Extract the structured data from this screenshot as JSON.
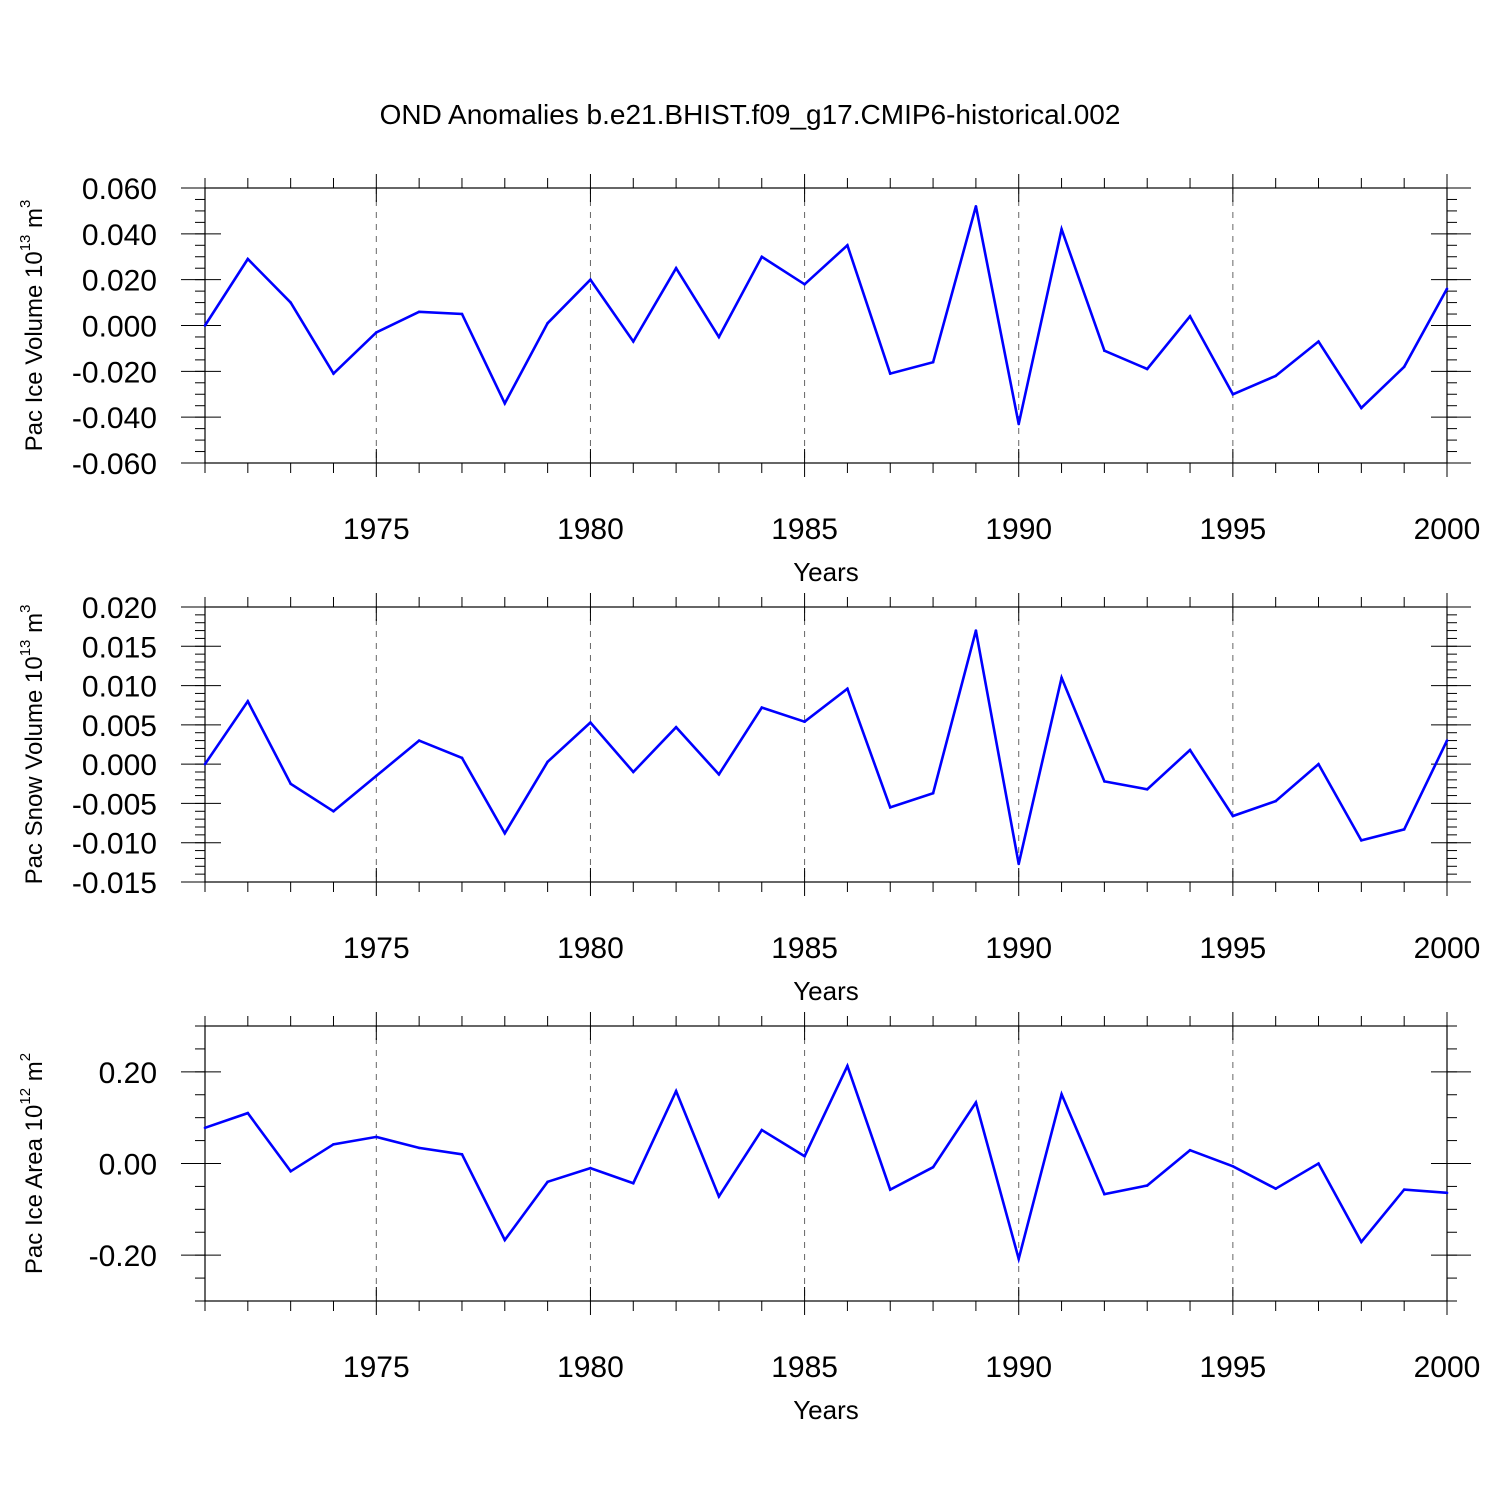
{
  "title": "OND Anomalies b.e21.BHIST.f09_g17.CMIP6-historical.002",
  "line_color": "#0000ff",
  "chart_data": [
    {
      "type": "line",
      "ylabel": {
        "text": "Pac Ice Volume 10",
        "exp1": "13",
        "unit": " m",
        "exp2": "3"
      },
      "xlabel": "Years",
      "xlim": [
        1971,
        2000
      ],
      "ylim": [
        -0.06,
        0.06
      ],
      "yticks": [
        -0.06,
        -0.04,
        -0.02,
        0.0,
        0.02,
        0.04,
        0.06
      ],
      "ytick_labels": [
        "-0.060",
        "-0.040",
        "-0.020",
        "0.000",
        "0.020",
        "0.040",
        "0.060"
      ],
      "yminor_step": 0.005,
      "xticks": [
        1975,
        1980,
        1985,
        1990,
        1995,
        2000
      ],
      "xtick_labels": [
        "1975",
        "1980",
        "1985",
        "1990",
        "1995",
        "2000"
      ],
      "grid": "vertical dashed",
      "x": [
        1971,
        1972,
        1973,
        1974,
        1975,
        1976,
        1977,
        1978,
        1979,
        1980,
        1981,
        1982,
        1983,
        1984,
        1985,
        1986,
        1987,
        1988,
        1989,
        1990,
        1991,
        1992,
        1993,
        1994,
        1995,
        1996,
        1997,
        1998,
        1999,
        2000
      ],
      "y": [
        0.0,
        0.029,
        0.01,
        -0.021,
        -0.003,
        0.006,
        0.005,
        -0.034,
        0.001,
        0.02,
        -0.007,
        0.025,
        -0.005,
        0.03,
        0.018,
        0.035,
        -0.021,
        -0.016,
        0.052,
        -0.043,
        0.042,
        -0.011,
        -0.019,
        0.004,
        -0.03,
        -0.022,
        -0.007,
        -0.036,
        -0.018,
        0.016
      ]
    },
    {
      "type": "line",
      "ylabel": {
        "text": "Pac Snow Volume 10",
        "exp1": "13",
        "unit": " m",
        "exp2": "3"
      },
      "xlabel": "Years",
      "xlim": [
        1971,
        2000
      ],
      "ylim": [
        -0.015,
        0.02
      ],
      "yticks": [
        -0.015,
        -0.01,
        -0.005,
        0.0,
        0.005,
        0.01,
        0.015,
        0.02
      ],
      "ytick_labels": [
        "-0.015",
        "-0.010",
        "-0.005",
        "0.000",
        "0.005",
        "0.010",
        "0.015",
        "0.020"
      ],
      "yminor_step": 0.001,
      "xticks": [
        1975,
        1980,
        1985,
        1990,
        1995,
        2000
      ],
      "xtick_labels": [
        "1975",
        "1980",
        "1985",
        "1990",
        "1995",
        "2000"
      ],
      "grid": "vertical dashed",
      "x": [
        1971,
        1972,
        1973,
        1974,
        1975,
        1976,
        1977,
        1978,
        1979,
        1980,
        1981,
        1982,
        1983,
        1984,
        1985,
        1986,
        1987,
        1988,
        1989,
        1990,
        1991,
        1992,
        1993,
        1994,
        1995,
        1996,
        1997,
        1998,
        1999,
        2000
      ],
      "y": [
        0.0,
        0.008,
        -0.0025,
        -0.006,
        -0.0015,
        0.003,
        0.0008,
        -0.0088,
        0.0003,
        0.0053,
        -0.001,
        0.0047,
        -0.0013,
        0.0072,
        0.0054,
        0.0096,
        -0.0055,
        -0.0037,
        0.017,
        -0.0127,
        0.011,
        -0.0022,
        -0.0032,
        0.0018,
        -0.0066,
        -0.0047,
        0.0,
        -0.0097,
        -0.0083,
        0.003
      ]
    },
    {
      "type": "line",
      "ylabel": {
        "text": "Pac Ice Area 10",
        "exp1": "12",
        "unit": " m",
        "exp2": "2"
      },
      "xlabel": "Years",
      "xlim": [
        1971,
        2000
      ],
      "ylim": [
        -0.3,
        0.3
      ],
      "yticks": [
        -0.2,
        0.0,
        0.2
      ],
      "ytick_labels": [
        "-0.20",
        "0.00",
        "0.20"
      ],
      "yminor_step": 0.05,
      "xticks": [
        1975,
        1980,
        1985,
        1990,
        1995,
        2000
      ],
      "xtick_labels": [
        "1975",
        "1980",
        "1985",
        "1990",
        "1995",
        "2000"
      ],
      "grid": "vertical dashed",
      "x": [
        1971,
        1972,
        1973,
        1974,
        1975,
        1976,
        1977,
        1978,
        1979,
        1980,
        1981,
        1982,
        1983,
        1984,
        1985,
        1986,
        1987,
        1988,
        1989,
        1990,
        1991,
        1992,
        1993,
        1994,
        1995,
        1996,
        1997,
        1998,
        1999,
        2000
      ],
      "y": [
        0.078,
        0.11,
        -0.017,
        0.042,
        0.058,
        0.034,
        0.02,
        -0.167,
        -0.04,
        -0.01,
        -0.043,
        0.158,
        -0.072,
        0.073,
        0.016,
        0.213,
        -0.057,
        -0.008,
        0.133,
        -0.208,
        0.151,
        -0.067,
        -0.048,
        0.029,
        -0.006,
        -0.055,
        0.0,
        -0.171,
        -0.057,
        -0.064
      ]
    }
  ]
}
